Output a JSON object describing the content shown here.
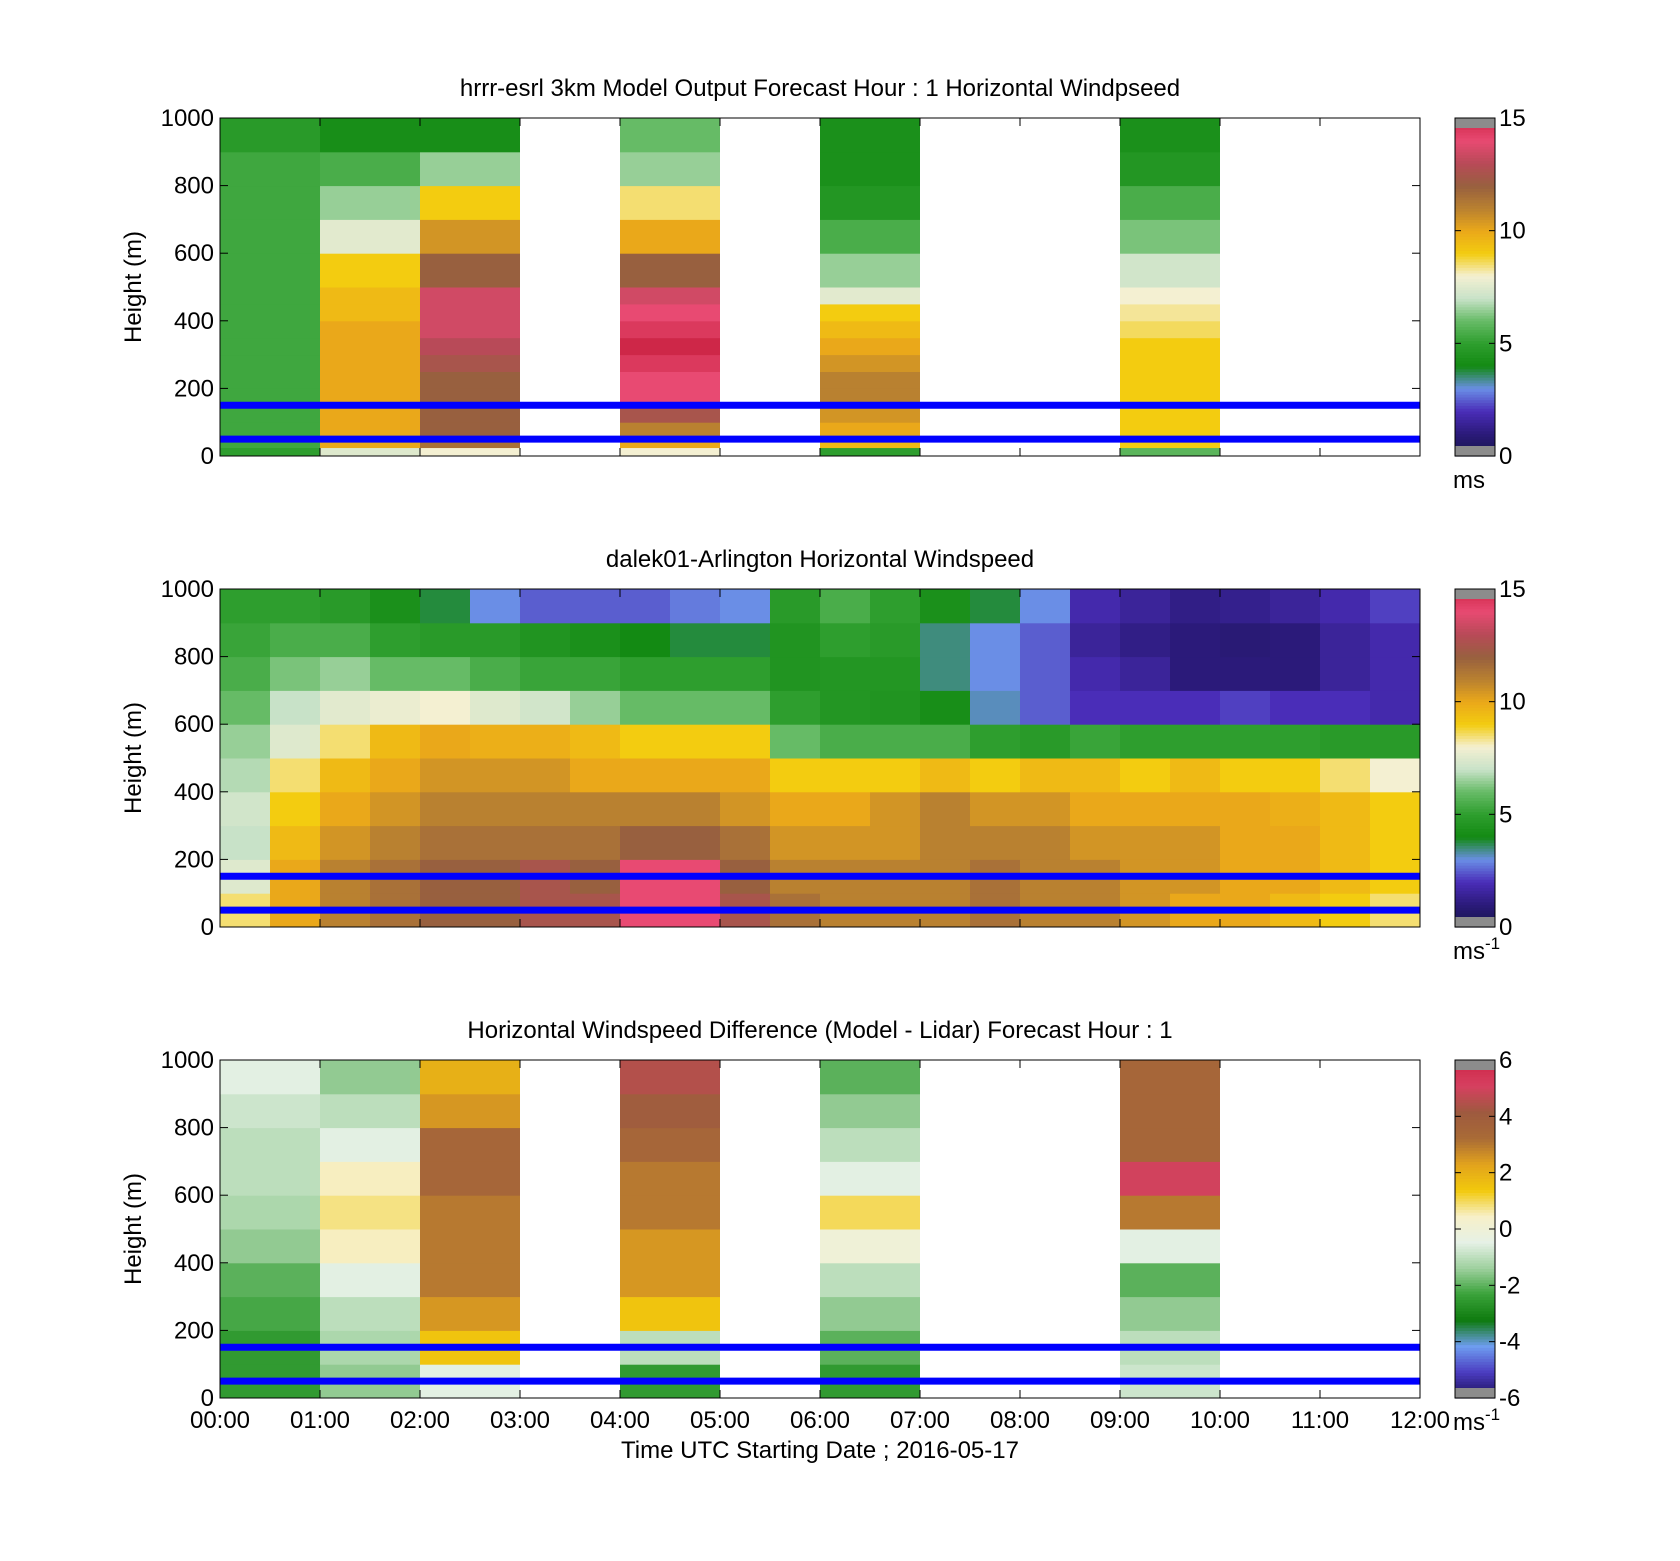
{
  "colors": {
    "overlay_line": "#0000ff",
    "windspeed_colormap": [
      "#17154a",
      "#2b1a7a",
      "#4a2db8",
      "#6a8ee6",
      "#138a13",
      "#2e9e2e",
      "#66bb66",
      "#c8e2c8",
      "#f4f0d2",
      "#f3cc10",
      "#eaa81a",
      "#b98130",
      "#98603f",
      "#b84a58",
      "#e84a72",
      "#ce2748"
    ],
    "difference_colormap": [
      "#1a0f57",
      "#4b3cc0",
      "#6e9df0",
      "#0e7a0e",
      "#3aa23a",
      "#9ed09e",
      "#e6f1e6",
      "#f7f0c8",
      "#f2c90c",
      "#e2a31d",
      "#a96b36",
      "#9e5a3f",
      "#d64060",
      "#ce2748"
    ],
    "missing": "#8c8c8c"
  },
  "chart_data": [
    {
      "type": "heatmap",
      "title": "hrrr-esrl 3km Model Output   Forecast Hour : 1 Horizontal Windpseed",
      "xlabel": "",
      "ylabel": "Height (m)",
      "ylim": [
        0,
        1000
      ],
      "yticks": [
        "0",
        "200",
        "400",
        "600",
        "800",
        "1000"
      ],
      "xticks": [
        "00:00",
        "01:00",
        "02:00",
        "03:00",
        "04:00",
        "05:00",
        "06:00",
        "07:00",
        "08:00",
        "09:00",
        "10:00",
        "11:00",
        "12:00"
      ],
      "show_xtick_labels": false,
      "x_hours": [
        0,
        1,
        2,
        4,
        6,
        9
      ],
      "heights": [
        0,
        25,
        50,
        100,
        150,
        200,
        250,
        300,
        350,
        400,
        450,
        500,
        600,
        700,
        800,
        900,
        1000
      ],
      "values": [
        [
          5.0,
          5.3,
          5.3,
          5.3,
          5.3,
          5.3,
          5.3,
          5.3,
          5.3,
          5.3,
          5.3,
          5.3,
          5.3,
          5.3,
          5.3,
          4.8
        ],
        [
          7.5,
          10.0,
          10.0,
          10.0,
          10.0,
          10.0,
          10.0,
          10.0,
          10.0,
          9.5,
          9.5,
          9.0,
          7.6,
          6.5,
          5.5,
          4.2
        ],
        [
          8.0,
          11.5,
          12.0,
          12.0,
          12.0,
          12.0,
          12.5,
          13.0,
          13.5,
          13.5,
          13.5,
          12.0,
          10.5,
          9.0,
          6.5,
          4.2
        ],
        [
          8.0,
          10.0,
          11.0,
          12.5,
          14.0,
          14.0,
          14.5,
          15.0,
          14.5,
          14.0,
          13.5,
          12.0,
          10.0,
          8.5,
          6.5,
          6.0
        ],
        [
          5.0,
          9.5,
          10.0,
          10.5,
          11.0,
          11.0,
          10.5,
          10.0,
          9.5,
          9.0,
          7.6,
          6.5,
          5.5,
          4.6,
          4.3,
          4.3
        ],
        [
          5.8,
          9.0,
          9.0,
          9.0,
          9.0,
          9.0,
          9.0,
          9.0,
          8.6,
          8.3,
          8.0,
          7.2,
          6.2,
          5.5,
          4.6,
          4.3
        ]
      ],
      "overlay_lines_m": [
        50,
        150
      ],
      "colorbar": {
        "min": 0,
        "max": 15,
        "ticks": [
          "0",
          "5",
          "10",
          "15"
        ],
        "unit": "ms"
      }
    },
    {
      "type": "heatmap",
      "title": "dalek01-Arlington  Horizontal Windspeed",
      "xlabel": "",
      "ylabel": "Height (m)",
      "ylim": [
        0,
        1000
      ],
      "yticks": [
        "0",
        "200",
        "400",
        "600",
        "800",
        "1000"
      ],
      "xticks": [
        "00:00",
        "01:00",
        "02:00",
        "03:00",
        "04:00",
        "05:00",
        "06:00",
        "07:00",
        "08:00",
        "09:00",
        "10:00",
        "11:00",
        "12:00"
      ],
      "show_xtick_labels": false,
      "x_hours": [
        0,
        0.5,
        1,
        1.5,
        2,
        2.5,
        3,
        3.5,
        4,
        4.5,
        5,
        5.5,
        6,
        6.5,
        7,
        7.5,
        8,
        8.5,
        9,
        9.5,
        10,
        10.5,
        11,
        11.5
      ],
      "heights": [
        0,
        100,
        200,
        300,
        400,
        500,
        600,
        700,
        800,
        900,
        1000
      ],
      "values": [
        [
          8.5,
          7.5,
          7.0,
          7.2,
          6.8,
          6.5,
          6.0,
          5.5,
          5.2,
          5.0
        ],
        [
          10.0,
          10.0,
          9.5,
          9.0,
          8.5,
          7.5,
          7.0,
          6.2,
          5.5,
          5.0
        ],
        [
          11.0,
          11.0,
          10.5,
          10.0,
          9.5,
          8.5,
          7.6,
          6.5,
          5.5,
          4.8
        ],
        [
          11.5,
          11.5,
          11.0,
          10.5,
          10.0,
          9.5,
          7.8,
          6.0,
          5.0,
          4.3
        ],
        [
          12.0,
          12.0,
          11.5,
          11.0,
          10.5,
          10.0,
          8.0,
          6.0,
          4.8,
          3.8
        ],
        [
          12.0,
          12.0,
          11.5,
          11.0,
          10.5,
          9.8,
          7.5,
          5.5,
          4.8,
          3.0
        ],
        [
          12.5,
          12.5,
          11.5,
          11.0,
          10.5,
          9.8,
          7.2,
          5.2,
          4.5,
          2.5
        ],
        [
          12.5,
          12.0,
          11.5,
          11.0,
          10.0,
          9.5,
          6.5,
          5.2,
          4.3,
          2.5
        ],
        [
          14.0,
          14.0,
          12.0,
          11.0,
          10.0,
          9.0,
          6.0,
          5.0,
          4.0,
          2.5
        ],
        [
          14.0,
          14.0,
          12.0,
          11.0,
          10.0,
          9.0,
          6.0,
          5.0,
          3.8,
          2.8
        ],
        [
          12.5,
          12.0,
          11.5,
          10.5,
          10.0,
          9.0,
          6.0,
          5.0,
          3.8,
          3.0
        ],
        [
          11.5,
          11.0,
          10.5,
          10.0,
          9.0,
          6.0,
          5.0,
          4.5,
          4.5,
          4.8
        ],
        [
          11.0,
          11.0,
          10.5,
          10.0,
          9.0,
          5.5,
          4.6,
          4.6,
          5.0,
          5.5
        ],
        [
          11.0,
          11.0,
          10.5,
          10.5,
          9.0,
          5.5,
          4.5,
          4.6,
          4.8,
          5.0
        ],
        [
          11.0,
          11.0,
          11.0,
          11.0,
          9.5,
          5.5,
          4.2,
          3.5,
          3.5,
          4.3
        ],
        [
          11.5,
          11.5,
          11.0,
          10.5,
          9.0,
          5.0,
          3.2,
          3.0,
          3.0,
          3.8
        ],
        [
          11.0,
          11.0,
          11.0,
          10.5,
          9.5,
          4.8,
          2.5,
          2.5,
          2.5,
          3.0
        ],
        [
          11.0,
          11.0,
          10.5,
          10.0,
          9.5,
          5.2,
          2.0,
          1.8,
          1.5,
          1.8
        ],
        [
          10.5,
          10.5,
          10.5,
          10.0,
          9.0,
          5.0,
          2.0,
          1.5,
          1.2,
          1.5
        ],
        [
          10.0,
          10.5,
          10.5,
          10.0,
          9.5,
          5.0,
          2.0,
          1.0,
          1.0,
          1.2
        ],
        [
          10.0,
          10.0,
          10.0,
          10.0,
          9.0,
          5.0,
          2.2,
          1.0,
          0.9,
          1.3
        ],
        [
          9.5,
          10.0,
          10.0,
          9.8,
          9.0,
          5.0,
          2.0,
          1.0,
          1.0,
          1.5
        ],
        [
          9.0,
          9.5,
          9.5,
          9.5,
          8.5,
          4.8,
          2.0,
          1.5,
          1.5,
          1.8
        ],
        [
          8.5,
          9.0,
          9.0,
          9.0,
          8.0,
          4.8,
          1.8,
          1.8,
          1.8,
          2.2
        ]
      ],
      "overlay_lines_m": [
        50,
        150
      ],
      "colorbar": {
        "min": 0,
        "max": 15,
        "ticks": [
          "0",
          "5",
          "10",
          "15"
        ],
        "unit": "ms",
        "unit_exp": "-1"
      }
    },
    {
      "type": "heatmap",
      "title": "Horizontal Windspeed Difference (Model - Lidar) Forecast Hour : 1",
      "xlabel": "Time UTC  Starting Date ; 2016-05-17",
      "ylabel": "Height (m)",
      "ylim": [
        0,
        1000
      ],
      "yticks": [
        "0",
        "200",
        "400",
        "600",
        "800",
        "1000"
      ],
      "xticks": [
        "00:00",
        "01:00",
        "02:00",
        "03:00",
        "04:00",
        "05:00",
        "06:00",
        "07:00",
        "08:00",
        "09:00",
        "10:00",
        "11:00",
        "12:00"
      ],
      "show_xtick_labels": true,
      "x_hours": [
        0,
        1,
        2,
        4,
        6,
        9
      ],
      "heights": [
        0,
        100,
        200,
        300,
        400,
        500,
        600,
        700,
        800,
        900,
        1000
      ],
      "values": [
        [
          -2.5,
          -2.5,
          -2.2,
          -2.0,
          -1.5,
          -1.2,
          -1.0,
          -1.0,
          -0.8,
          -0.5
        ],
        [
          -1.5,
          -1.2,
          -1.0,
          -0.5,
          0.5,
          0.8,
          0.5,
          -0.5,
          -1.0,
          -1.5
        ],
        [
          -0.5,
          1.5,
          2.5,
          3.0,
          3.0,
          3.0,
          3.5,
          3.5,
          2.5,
          2.0
        ],
        [
          -2.5,
          -1.0,
          1.5,
          2.5,
          2.5,
          3.0,
          3.0,
          3.5,
          4.0,
          4.5
        ],
        [
          -2.5,
          -2.0,
          -1.5,
          -1.0,
          0.0,
          1.0,
          -0.5,
          -1.0,
          -1.5,
          -2.0
        ],
        [
          -0.8,
          -1.0,
          -1.5,
          -2.0,
          -0.5,
          3.0,
          5.0,
          3.5,
          3.5,
          3.5
        ]
      ],
      "overlay_lines_m": [
        50,
        150
      ],
      "colorbar": {
        "min": -6,
        "max": 6,
        "ticks": [
          "-6",
          "-4",
          "-2",
          "0",
          "2",
          "4",
          "6"
        ],
        "unit": "ms",
        "unit_exp": "-1"
      }
    }
  ]
}
